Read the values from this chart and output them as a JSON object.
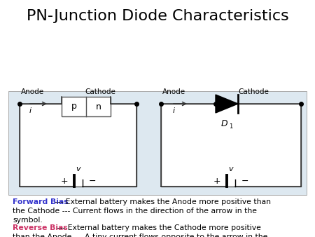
{
  "title": "PN-Junction Diode Characteristics",
  "title_fontsize": 16,
  "title_fontweight": "normal",
  "bg_panel_color": "#dde8f0",
  "bg_panel_edge": "#aaaaaa",
  "circuit_edge_color": "#555555",
  "wire_color": "#333333",
  "forward_bias_label": "Forward Bias",
  "forward_bias_color": "#3333cc",
  "forward_bias_text": " --- External battery makes the Anode more positive than\nthe Cathode --- Current flows in the direction of the arrow in the\nsymbol.",
  "reverse_bias_label": "Reverse Bias",
  "reverse_bias_color": "#cc3366",
  "reverse_bias_text": " --- External battery makes the Cathode more positive\nthan the Anode --- A tiny current flows opposite to the arrow in the\nsymbol.",
  "text_fontsize": 7.8,
  "label_fontsize": 7.5,
  "pn_label_fontsize": 9
}
